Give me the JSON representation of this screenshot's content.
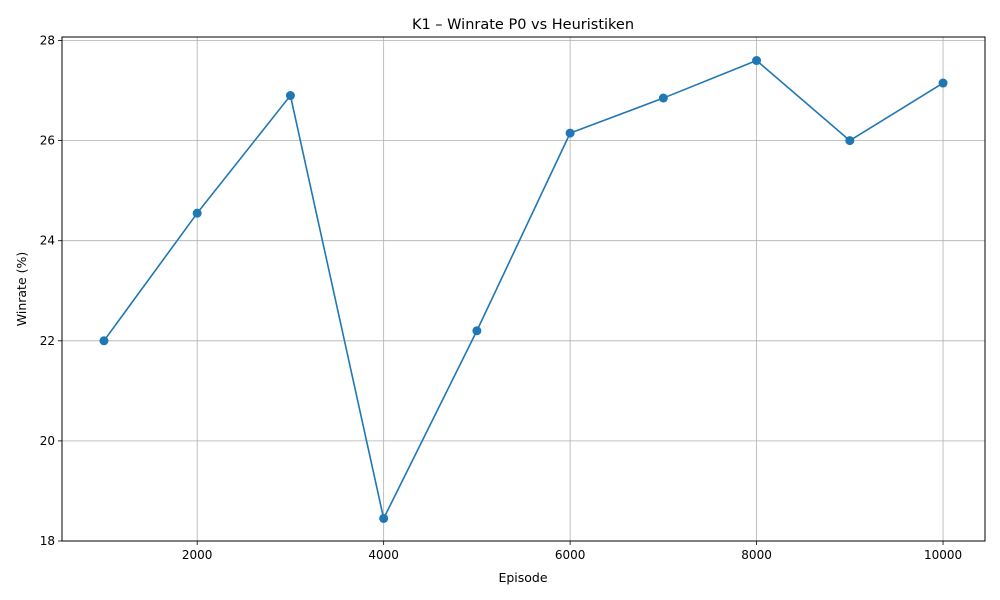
{
  "chart_data": {
    "type": "line",
    "title": "K1 – Winrate P0 vs Heuristiken",
    "xlabel": "Episode",
    "ylabel": "Winrate (%)",
    "x": [
      1000,
      2000,
      3000,
      4000,
      5000,
      6000,
      7000,
      8000,
      9000,
      10000
    ],
    "series": [
      {
        "values": [
          22.0,
          24.55,
          26.9,
          18.45,
          22.2,
          26.15,
          26.85,
          27.6,
          26.0,
          27.15
        ],
        "color": "#1f77b4",
        "marker": "circle"
      }
    ],
    "xlim": [
      550,
      10450
    ],
    "ylim": [
      18.0,
      28.07
    ],
    "xticks": [
      2000,
      4000,
      6000,
      8000,
      10000
    ],
    "xtick_labels": [
      "2000",
      "4000",
      "6000",
      "8000",
      "10000"
    ],
    "yticks": [
      18,
      20,
      22,
      24,
      26,
      28
    ],
    "ytick_labels": [
      "18",
      "20",
      "22",
      "24",
      "26",
      "28"
    ],
    "grid": true,
    "grid_color": "#b0b0b0"
  }
}
